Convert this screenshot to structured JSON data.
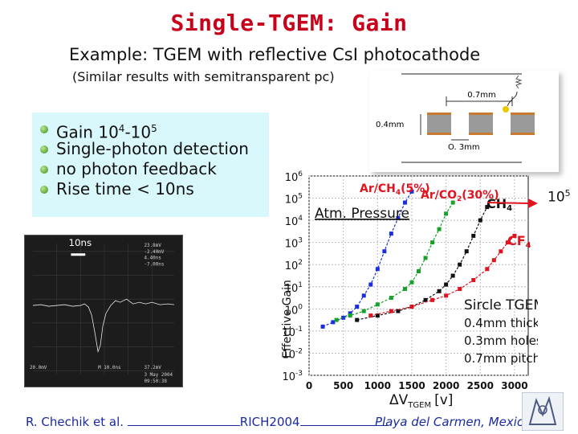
{
  "slide": {
    "title": "Single-TGEM: Gain",
    "subtitle": "Example: TGEM with reflective CsI photocathode",
    "note": "(Similar results with semitransparent pc)"
  },
  "bullets": [
    {
      "text": "Gain 10",
      "sup1": "4",
      "mid": "-10",
      "sup2": "5"
    },
    {
      "text": "Single-photon detection"
    },
    {
      "text": "no photon feedback"
    },
    {
      "text": "Rise time < 10ns"
    }
  ],
  "schematic": {
    "pitch_label": "0.7mm",
    "thickness_label": "0.4mm",
    "hole_label": "O. 3mm"
  },
  "scope": {
    "time_label": "10ns",
    "readout_lines": [
      "23.8mV",
      "-2.40mV",
      "4.40ns",
      "-7.00ns"
    ],
    "bottom_left": "20.0mV",
    "bottom_mid": "M 10.0ns",
    "bottom_right": "37.2mV",
    "date": "3 May 2004",
    "time": "09:50:38"
  },
  "chart_data": {
    "type": "scatter",
    "xlabel": "ΔV",
    "xlabel_sub": "TGEM",
    "xlabel_unit": "[v]",
    "ylabel": "Effective Gain",
    "xlim": [
      0,
      3200
    ],
    "ylim_log10": [
      -3,
      6
    ],
    "x_ticks": [
      "0",
      "500",
      "1000",
      "1500",
      "2000",
      "2500",
      "3000"
    ],
    "y_ticks": [
      {
        "exp": "6"
      },
      {
        "exp": "5"
      },
      {
        "exp": "4"
      },
      {
        "exp": "3"
      },
      {
        "exp": "2"
      },
      {
        "exp": "1"
      },
      {
        "exp": "0"
      },
      {
        "exp": "-1"
      },
      {
        "exp": "-2"
      },
      {
        "exp": "-3"
      }
    ],
    "y_tick_base": "10",
    "annotation_pressure": "Atm. Pressure",
    "annotation_design": [
      "Sircle TGEM",
      "0.4mm thick",
      "0.3mm holes",
      "0.7mm pitch"
    ],
    "series": [
      {
        "name": "Ar/CH4(5%)",
        "label_main": "Ar/CH",
        "label_sub": "4",
        "label_tail": "(5%)",
        "color": "#1a2ee0",
        "points": [
          [
            200,
            -0.8
          ],
          [
            350,
            -0.6
          ],
          [
            500,
            -0.4
          ],
          [
            600,
            -0.2
          ],
          [
            700,
            0.1
          ],
          [
            800,
            0.6
          ],
          [
            900,
            1.1
          ],
          [
            1000,
            1.8
          ],
          [
            1100,
            2.6
          ],
          [
            1200,
            3.4
          ],
          [
            1300,
            4.1
          ],
          [
            1400,
            4.8
          ],
          [
            1500,
            5.3
          ]
        ]
      },
      {
        "name": "Ar/CO2(30%)",
        "label_main": "Ar/CO",
        "label_sub": "2",
        "label_tail": "(30%)",
        "color": "#17a02a",
        "points": [
          [
            400,
            -0.5
          ],
          [
            600,
            -0.3
          ],
          [
            800,
            -0.1
          ],
          [
            1000,
            0.2
          ],
          [
            1200,
            0.5
          ],
          [
            1400,
            0.9
          ],
          [
            1500,
            1.2
          ],
          [
            1600,
            1.7
          ],
          [
            1700,
            2.3
          ],
          [
            1800,
            3.0
          ],
          [
            1900,
            3.6
          ],
          [
            2000,
            4.3
          ],
          [
            2100,
            4.8
          ]
        ]
      },
      {
        "name": "CH4",
        "label_main": "CH",
        "label_sub": "4",
        "label_tail": "",
        "color": "#111111",
        "points": [
          [
            700,
            -0.5
          ],
          [
            1000,
            -0.3
          ],
          [
            1300,
            -0.1
          ],
          [
            1500,
            0.1
          ],
          [
            1700,
            0.4
          ],
          [
            1900,
            0.8
          ],
          [
            2000,
            1.1
          ],
          [
            2100,
            1.5
          ],
          [
            2200,
            2.0
          ],
          [
            2300,
            2.6
          ],
          [
            2400,
            3.3
          ],
          [
            2500,
            4.0
          ],
          [
            2600,
            4.6
          ]
        ]
      },
      {
        "name": "CF4",
        "label_main": "CF",
        "label_sub": "4",
        "label_tail": "",
        "color": "#e0141e",
        "points": [
          [
            900,
            -0.3
          ],
          [
            1200,
            -0.1
          ],
          [
            1500,
            0.1
          ],
          [
            1800,
            0.4
          ],
          [
            2000,
            0.6
          ],
          [
            2200,
            0.9
          ],
          [
            2400,
            1.3
          ],
          [
            2600,
            1.8
          ],
          [
            2700,
            2.2
          ],
          [
            2800,
            2.6
          ],
          [
            2900,
            3.0
          ],
          [
            3000,
            3.3
          ]
        ]
      }
    ]
  },
  "arrow": {
    "base": "10",
    "exp": "5"
  },
  "footer": {
    "author": "R. Chechik et al.",
    "conference": "RICH2004",
    "city": "Playa del Carmen, Mexico"
  }
}
